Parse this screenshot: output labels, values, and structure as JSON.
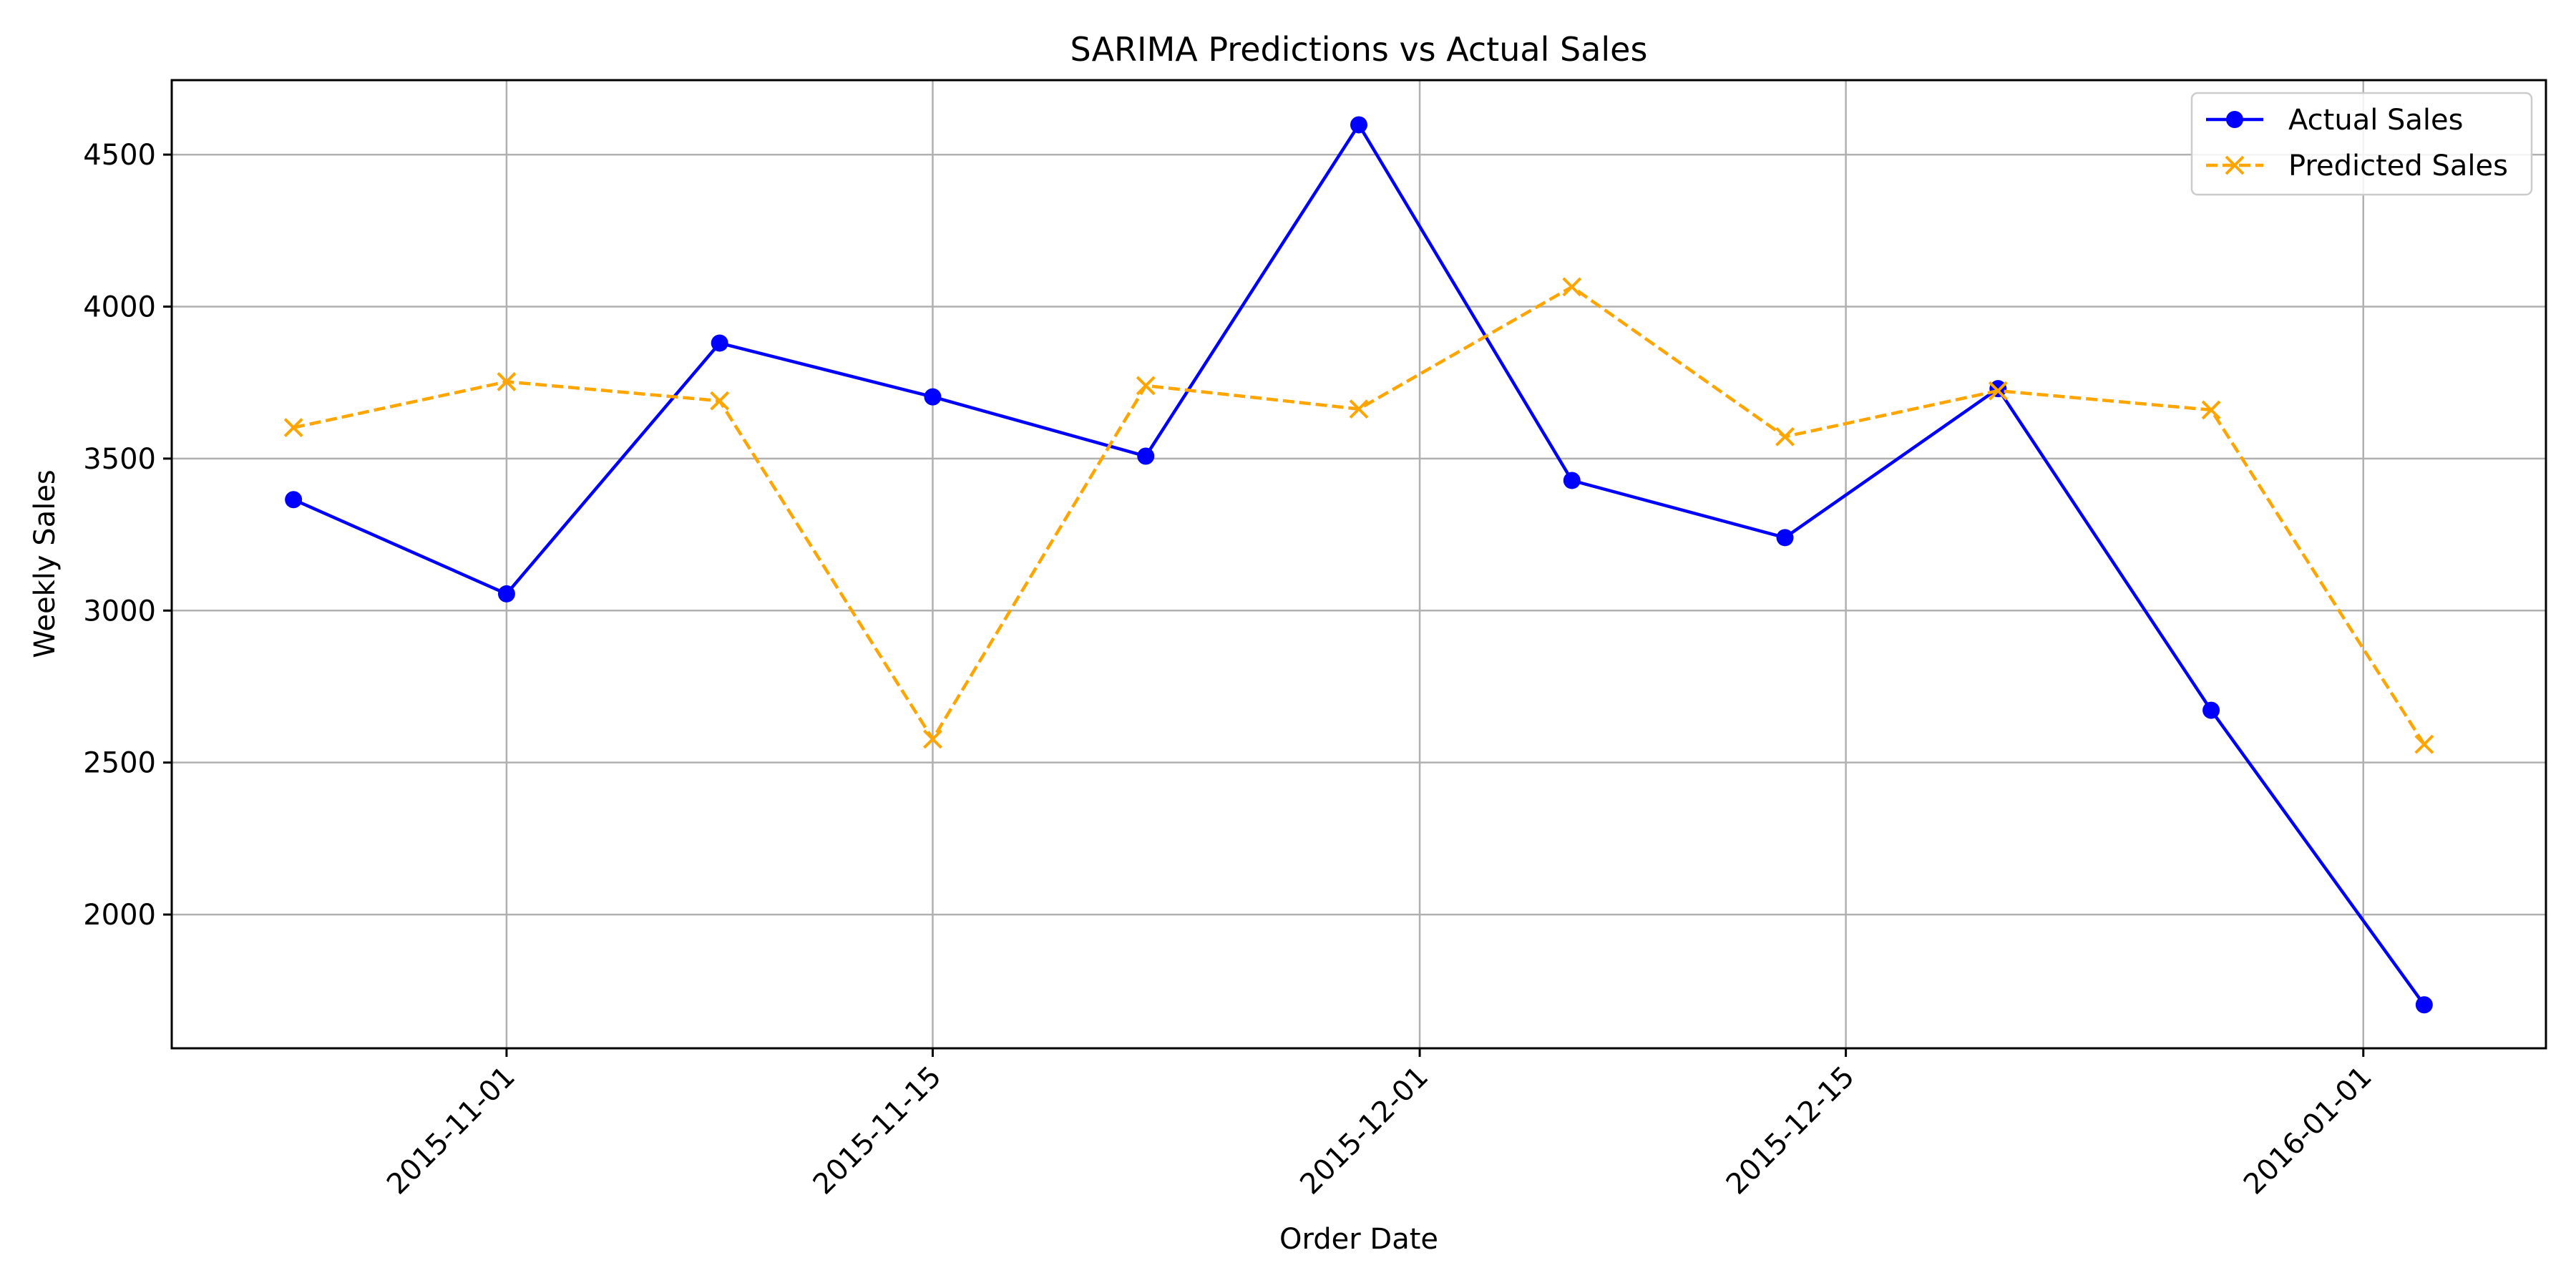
{
  "chart_data": {
    "type": "line",
    "title": "SARIMA Predictions vs Actual Sales",
    "xlabel": "Order Date",
    "ylabel": "Weekly Sales",
    "x": [
      "2015-10-25",
      "2015-11-01",
      "2015-11-08",
      "2015-11-15",
      "2015-11-22",
      "2015-11-29",
      "2015-12-06",
      "2015-12-13",
      "2015-12-20",
      "2015-12-27",
      "2016-01-03"
    ],
    "xlim": [
      "2015-10-21",
      "2016-01-07"
    ],
    "ylim": [
      1560,
      4745
    ],
    "xticks": [
      "2015-11-01",
      "2015-11-15",
      "2015-12-01",
      "2015-12-15",
      "2016-01-01"
    ],
    "yticks": [
      2000,
      2500,
      3000,
      3500,
      4000,
      4500
    ],
    "grid": true,
    "legend_position": "top-right",
    "series": [
      {
        "name": "Actual Sales",
        "color": "#0000ff",
        "line_style": "solid",
        "marker": "circle",
        "values": [
          3365,
          3055,
          3880,
          3703,
          3508,
          4598,
          3428,
          3240,
          3730,
          2672,
          1703
        ]
      },
      {
        "name": "Predicted Sales",
        "color": "#ffa500",
        "line_style": "dashed",
        "marker": "x",
        "values": [
          3602,
          3753,
          3690,
          2577,
          3740,
          3663,
          4065,
          3572,
          3723,
          3660,
          2560
        ]
      }
    ]
  }
}
